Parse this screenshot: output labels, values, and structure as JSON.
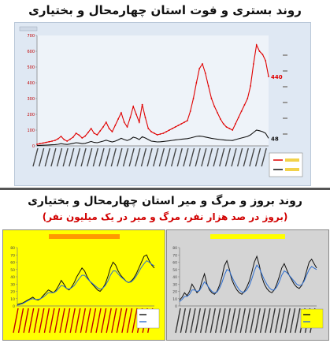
{
  "header": {
    "title_top": "روند بستری و فوت استان چهارمحال و بختیاری",
    "title_bottom": "روند بروز و مرگ و میر استان چهارمحال و بختیاری",
    "subtitle_bottom": "(بروز در صد هزار نفر، مرگ و میر در یک میلیون نفر)"
  },
  "colors": {
    "panel_top_bg": "#dfe8f3",
    "panel_left_bg": "#ffff00",
    "panel_right_bg": "#d4d4d4",
    "red_series": "#e00000",
    "black_series": "#111111",
    "blue_series": "#2f6fd0"
  },
  "chart_data": [
    {
      "type": "line",
      "ylim": [
        0,
        700
      ],
      "yticks": [
        "0",
        "100",
        "200",
        "300",
        "400",
        "500",
        "600",
        "700"
      ],
      "end_labels": [
        "440",
        "48"
      ],
      "legend_placement": "bottom-right",
      "grid": false,
      "series": [
        {
          "color": "#e00000",
          "values": [
            10,
            14,
            18,
            22,
            26,
            30,
            35,
            45,
            60,
            40,
            30,
            42,
            55,
            80,
            68,
            50,
            62,
            85,
            110,
            80,
            70,
            95,
            120,
            150,
            110,
            90,
            130,
            170,
            210,
            150,
            120,
            180,
            250,
            200,
            150,
            262,
            180,
            110,
            90,
            80,
            70,
            75,
            80,
            90,
            100,
            110,
            120,
            130,
            140,
            150,
            160,
            220,
            300,
            400,
            490,
            520,
            460,
            380,
            300,
            250,
            210,
            170,
            140,
            120,
            110,
            100,
            140,
            180,
            220,
            260,
            300,
            380,
            520,
            640,
            600,
            580,
            540,
            440
          ]
        },
        {
          "color": "#111111",
          "values": [
            2,
            3,
            4,
            5,
            6,
            7,
            8,
            10,
            14,
            11,
            9,
            12,
            16,
            20,
            18,
            14,
            16,
            22,
            28,
            22,
            20,
            25,
            30,
            36,
            30,
            25,
            30,
            38,
            48,
            40,
            34,
            42,
            55,
            50,
            40,
            58,
            50,
            40,
            30,
            28,
            25,
            26,
            28,
            30,
            32,
            35,
            38,
            40,
            42,
            44,
            46,
            50,
            55,
            60,
            62,
            60,
            56,
            52,
            48,
            45,
            42,
            40,
            38,
            36,
            35,
            34,
            40,
            45,
            50,
            55,
            60,
            70,
            85,
            100,
            96,
            90,
            80,
            48
          ]
        }
      ]
    },
    {
      "type": "line",
      "ylim": [
        0,
        80
      ],
      "yticks": [
        "0",
        "10",
        "20",
        "30",
        "40",
        "50",
        "60",
        "70",
        "80"
      ],
      "series": [
        {
          "color": "#111111",
          "values": [
            2,
            3,
            4,
            6,
            8,
            10,
            12,
            9,
            8,
            10,
            14,
            18,
            22,
            20,
            18,
            22,
            28,
            35,
            30,
            24,
            22,
            26,
            32,
            40,
            46,
            52,
            48,
            40,
            34,
            30,
            26,
            22,
            20,
            24,
            30,
            40,
            52,
            60,
            56,
            48,
            42,
            38,
            34,
            32,
            34,
            38,
            44,
            52,
            60,
            68,
            70,
            62,
            56,
            52
          ]
        },
        {
          "color": "#2f6fd0",
          "values": [
            1,
            2,
            3,
            5,
            7,
            9,
            10,
            9,
            9,
            10,
            12,
            15,
            18,
            18,
            18,
            20,
            24,
            28,
            27,
            24,
            23,
            25,
            28,
            33,
            38,
            42,
            42,
            38,
            34,
            31,
            28,
            25,
            23,
            24,
            28,
            34,
            42,
            48,
            48,
            44,
            40,
            37,
            34,
            32,
            33,
            36,
            41,
            47,
            53,
            58,
            62,
            60,
            57,
            55
          ]
        }
      ]
    },
    {
      "type": "line",
      "ylim": [
        0,
        80
      ],
      "yticks": [
        "0",
        "10",
        "20",
        "30",
        "40",
        "50",
        "60",
        "70",
        "80"
      ],
      "series": [
        {
          "color": "#111111",
          "values": [
            8,
            12,
            18,
            14,
            20,
            30,
            24,
            18,
            22,
            34,
            44,
            30,
            22,
            18,
            16,
            20,
            28,
            40,
            55,
            62,
            50,
            36,
            28,
            22,
            18,
            16,
            20,
            26,
            34,
            46,
            60,
            68,
            56,
            40,
            30,
            24,
            20,
            18,
            22,
            30,
            40,
            52,
            58,
            50,
            42,
            36,
            30,
            26,
            24,
            28,
            36,
            48,
            60,
            64,
            58,
            52
          ]
        },
        {
          "color": "#2f6fd0",
          "values": [
            6,
            9,
            13,
            13,
            16,
            22,
            22,
            20,
            21,
            27,
            33,
            29,
            24,
            20,
            18,
            19,
            24,
            32,
            42,
            50,
            48,
            40,
            33,
            27,
            22,
            19,
            19,
            22,
            28,
            37,
            48,
            56,
            52,
            44,
            36,
            30,
            25,
            22,
            22,
            26,
            33,
            42,
            48,
            46,
            42,
            38,
            34,
            30,
            28,
            29,
            34,
            42,
            50,
            54,
            52,
            50
          ]
        }
      ]
    }
  ]
}
